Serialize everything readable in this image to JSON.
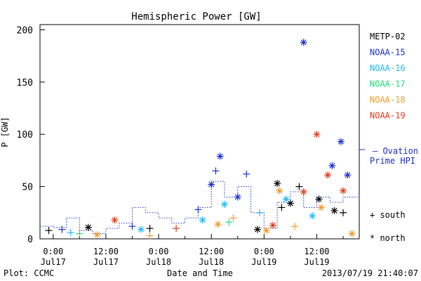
{
  "chart_data": {
    "type": "scatter",
    "title": "Hemispheric Power [GW]",
    "ylabel": "P [GW]",
    "xlabel": "Date and Time",
    "ylim": [
      0,
      205
    ],
    "xlim": [
      "2013-07-16T21:00",
      "2013-07-19T21:40"
    ],
    "yticks": [
      0,
      50,
      100,
      150,
      200
    ],
    "xticks": [
      {
        "top": "0:00",
        "bottom": "Jul17",
        "at": "2013-07-17T00:00"
      },
      {
        "top": "12:00",
        "bottom": "Jul17",
        "at": "2013-07-17T12:00"
      },
      {
        "top": "0:00",
        "bottom": "Jul18",
        "at": "2013-07-18T00:00"
      },
      {
        "top": "12:00",
        "bottom": "Jul18",
        "at": "2013-07-18T12:00"
      },
      {
        "top": "0:00",
        "bottom": "Jul19",
        "at": "2013-07-19T00:00"
      },
      {
        "top": "12:00",
        "bottom": "Jul19",
        "at": "2013-07-19T12:00"
      }
    ],
    "grid": false,
    "legend_position": "right",
    "markers": {
      "south": "+",
      "north": "*"
    },
    "series": [
      {
        "name": "METP-02",
        "color": "#000000",
        "points": [
          {
            "x": "2013-07-16T23:00",
            "y": 8,
            "m": "+"
          },
          {
            "x": "2013-07-17T08:00",
            "y": 11,
            "m": "*"
          },
          {
            "x": "2013-07-17T22:00",
            "y": 10,
            "m": "+"
          },
          {
            "x": "2013-07-18T22:30",
            "y": 9,
            "m": "*"
          },
          {
            "x": "2013-07-19T03:00",
            "y": 53,
            "m": "*"
          },
          {
            "x": "2013-07-19T04:00",
            "y": 30,
            "m": "+"
          },
          {
            "x": "2013-07-19T06:00",
            "y": 34,
            "m": "*"
          },
          {
            "x": "2013-07-19T08:00",
            "y": 50,
            "m": "+"
          },
          {
            "x": "2013-07-19T12:30",
            "y": 38,
            "m": "*"
          },
          {
            "x": "2013-07-19T16:00",
            "y": 27,
            "m": "*"
          },
          {
            "x": "2013-07-19T18:00",
            "y": 25,
            "m": "+"
          }
        ]
      },
      {
        "name": "NOAA-15",
        "color": "#1a2ecc",
        "points": [
          {
            "x": "2013-07-17T02:00",
            "y": 9,
            "m": "+"
          },
          {
            "x": "2013-07-17T18:00",
            "y": 12,
            "m": "+"
          },
          {
            "x": "2013-07-18T09:00",
            "y": 28,
            "m": "+"
          },
          {
            "x": "2013-07-18T12:00",
            "y": 52,
            "m": "*"
          },
          {
            "x": "2013-07-18T13:00",
            "y": 65,
            "m": "+"
          },
          {
            "x": "2013-07-18T14:00",
            "y": 79,
            "m": "*"
          },
          {
            "x": "2013-07-18T18:00",
            "y": 40,
            "m": "*"
          },
          {
            "x": "2013-07-18T20:00",
            "y": 62,
            "m": "+"
          },
          {
            "x": "2013-07-19T09:00",
            "y": 188,
            "m": "*"
          },
          {
            "x": "2013-07-19T15:30",
            "y": 70,
            "m": "*"
          },
          {
            "x": "2013-07-19T17:30",
            "y": 93,
            "m": "*"
          },
          {
            "x": "2013-07-19T19:00",
            "y": 61,
            "m": "*"
          }
        ]
      },
      {
        "name": "NOAA-16",
        "color": "#22b8ee",
        "points": [
          {
            "x": "2013-07-17T04:00",
            "y": 6,
            "m": "+"
          },
          {
            "x": "2013-07-17T20:00",
            "y": 9,
            "m": "*"
          },
          {
            "x": "2013-07-18T10:00",
            "y": 18,
            "m": "*"
          },
          {
            "x": "2013-07-18T15:00",
            "y": 33,
            "m": "*"
          },
          {
            "x": "2013-07-18T23:00",
            "y": 25,
            "m": "+"
          },
          {
            "x": "2013-07-19T05:00",
            "y": 38,
            "m": "*"
          },
          {
            "x": "2013-07-19T11:00",
            "y": 22,
            "m": "*"
          }
        ]
      },
      {
        "name": "NOAA-17",
        "color": "#22dd77",
        "points": [
          {
            "x": "2013-07-17T06:00",
            "y": 5,
            "m": "+"
          },
          {
            "x": "2013-07-18T16:00",
            "y": 16,
            "m": "+"
          }
        ]
      },
      {
        "name": "NOAA-18",
        "color": "#f29b2a",
        "points": [
          {
            "x": "2013-07-17T10:00",
            "y": 4,
            "m": "*"
          },
          {
            "x": "2013-07-17T22:00",
            "y": 3,
            "m": "+"
          },
          {
            "x": "2013-07-18T13:30",
            "y": 14,
            "m": "*"
          },
          {
            "x": "2013-07-18T17:00",
            "y": 20,
            "m": "+"
          },
          {
            "x": "2013-07-19T00:30",
            "y": 8,
            "m": "*"
          },
          {
            "x": "2013-07-19T03:30",
            "y": 46,
            "m": "*"
          },
          {
            "x": "2013-07-19T07:00",
            "y": 12,
            "m": "+"
          },
          {
            "x": "2013-07-19T13:00",
            "y": 30,
            "m": "*"
          },
          {
            "x": "2013-07-19T20:00",
            "y": 5,
            "m": "*"
          }
        ]
      },
      {
        "name": "NOAA-19",
        "color": "#e03a1a",
        "points": [
          {
            "x": "2013-07-17T14:00",
            "y": 18,
            "m": "*"
          },
          {
            "x": "2013-07-18T04:00",
            "y": 10,
            "m": "+"
          },
          {
            "x": "2013-07-19T02:00",
            "y": 13,
            "m": "*"
          },
          {
            "x": "2013-07-19T09:00",
            "y": 45,
            "m": "*"
          },
          {
            "x": "2013-07-19T12:00",
            "y": 100,
            "m": "*"
          },
          {
            "x": "2013-07-19T14:30",
            "y": 61,
            "m": "*"
          },
          {
            "x": "2013-07-19T18:00",
            "y": 46,
            "m": "*"
          }
        ]
      },
      {
        "name": "Ovation Prime HPI",
        "color": "#1a2ecc",
        "style": "dotted-step",
        "points": [
          {
            "x": "2013-07-16T21:00",
            "y": 12
          },
          {
            "x": "2013-07-17T00:00",
            "y": 11
          },
          {
            "x": "2013-07-17T03:00",
            "y": 20
          },
          {
            "x": "2013-07-17T06:00",
            "y": 8
          },
          {
            "x": "2013-07-17T09:00",
            "y": 5
          },
          {
            "x": "2013-07-17T12:00",
            "y": 10
          },
          {
            "x": "2013-07-17T15:00",
            "y": 15
          },
          {
            "x": "2013-07-17T18:00",
            "y": 30
          },
          {
            "x": "2013-07-17T21:00",
            "y": 25
          },
          {
            "x": "2013-07-18T00:00",
            "y": 20
          },
          {
            "x": "2013-07-18T03:00",
            "y": 15
          },
          {
            "x": "2013-07-18T06:00",
            "y": 20
          },
          {
            "x": "2013-07-18T09:00",
            "y": 30
          },
          {
            "x": "2013-07-18T12:00",
            "y": 55
          },
          {
            "x": "2013-07-18T15:00",
            "y": 40
          },
          {
            "x": "2013-07-18T18:00",
            "y": 50
          },
          {
            "x": "2013-07-18T21:00",
            "y": 25
          },
          {
            "x": "2013-07-19T00:00",
            "y": 10
          },
          {
            "x": "2013-07-19T03:00",
            "y": 35
          },
          {
            "x": "2013-07-19T06:00",
            "y": 45
          },
          {
            "x": "2013-07-19T09:00",
            "y": 30
          },
          {
            "x": "2013-07-19T12:00",
            "y": 40
          },
          {
            "x": "2013-07-19T15:00",
            "y": 35
          },
          {
            "x": "2013-07-19T18:00",
            "y": 40
          },
          {
            "x": "2013-07-19T21:00",
            "y": 40
          }
        ]
      }
    ]
  },
  "legend": {
    "items": [
      {
        "label": "METP-02",
        "color": "#000000"
      },
      {
        "label": "NOAA-15",
        "color": "#1a2ecc"
      },
      {
        "label": "NOAA-16",
        "color": "#22b8ee"
      },
      {
        "label": "NOAA-17",
        "color": "#22dd77"
      },
      {
        "label": "NOAA-18",
        "color": "#f29b2a"
      },
      {
        "label": "NOAA-19",
        "color": "#e03a1a"
      }
    ],
    "ovation_line1": "— Ovation",
    "ovation_line2": "Prime HPI",
    "south_label": "+ south",
    "north_label": "* north"
  },
  "footer": {
    "source": "Plot: CCMC",
    "timestamp": "2013/07/19 21:40:07"
  }
}
